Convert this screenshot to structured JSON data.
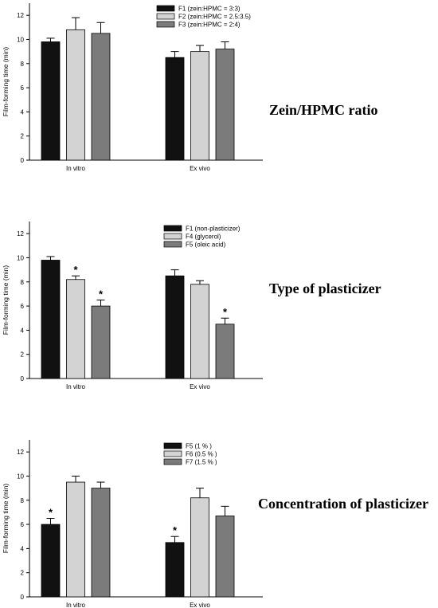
{
  "colors": {
    "series": [
      "#111111",
      "#d3d3d3",
      "#7b7b7b"
    ],
    "axis": "#000000",
    "error_bar": "#000000"
  },
  "chart_data": [
    {
      "type": "bar",
      "title": "Zein/HPMC ratio",
      "ylabel": "Film-forming time (min)",
      "xlabel": "",
      "ylim": [
        0,
        13
      ],
      "yticks": [
        0,
        2,
        4,
        6,
        8,
        10,
        12
      ],
      "categories": [
        "In vitro",
        "Ex vivo"
      ],
      "grid": false,
      "legend_position": "top-right",
      "series": [
        {
          "name": "F1 (zein:HPMC = 3:3)",
          "values": [
            9.8,
            8.5
          ],
          "errors": [
            0.3,
            0.5
          ],
          "significant": [
            false,
            false
          ]
        },
        {
          "name": "F2 (zein:HPMC = 2.5:3.5)",
          "values": [
            10.8,
            9.0
          ],
          "errors": [
            1.0,
            0.5
          ],
          "significant": [
            false,
            false
          ]
        },
        {
          "name": "F3 (zein:HPMC = 2:4)",
          "values": [
            10.5,
            9.2
          ],
          "errors": [
            0.9,
            0.6
          ],
          "significant": [
            false,
            false
          ]
        }
      ]
    },
    {
      "type": "bar",
      "title": "Type of plasticizer",
      "ylabel": "Film-forming time (min)",
      "xlabel": "",
      "ylim": [
        0,
        13
      ],
      "yticks": [
        0,
        2,
        4,
        6,
        8,
        10,
        12
      ],
      "categories": [
        "In vitro",
        "Ex vivo"
      ],
      "grid": false,
      "legend_position": "top-right",
      "series": [
        {
          "name": "F1 (non-plasticizer)",
          "values": [
            9.8,
            8.5
          ],
          "errors": [
            0.3,
            0.5
          ],
          "significant": [
            false,
            false
          ]
        },
        {
          "name": "F4 (glycerol)",
          "values": [
            8.2,
            7.8
          ],
          "errors": [
            0.3,
            0.3
          ],
          "significant": [
            true,
            false
          ]
        },
        {
          "name": "F5 (oleic acid)",
          "values": [
            6.0,
            4.5
          ],
          "errors": [
            0.5,
            0.5
          ],
          "significant": [
            true,
            true
          ]
        }
      ]
    },
    {
      "type": "bar",
      "title": "Concentration of plasticizer",
      "ylabel": "Film-forming time (min)",
      "xlabel": "",
      "ylim": [
        0,
        13
      ],
      "yticks": [
        0,
        2,
        4,
        6,
        8,
        10,
        12
      ],
      "categories": [
        "In vitro",
        "Ex vivo"
      ],
      "grid": false,
      "legend_position": "top-right",
      "series": [
        {
          "name": "F5 (1 % )",
          "values": [
            6.0,
            4.5
          ],
          "errors": [
            0.5,
            0.5
          ],
          "significant": [
            true,
            true
          ]
        },
        {
          "name": "F6 (0.5 % )",
          "values": [
            9.5,
            8.2
          ],
          "errors": [
            0.5,
            0.8
          ],
          "significant": [
            false,
            false
          ]
        },
        {
          "name": "F7 (1.5 % )",
          "values": [
            9.0,
            6.7
          ],
          "errors": [
            0.5,
            0.8
          ],
          "significant": [
            false,
            false
          ]
        }
      ]
    }
  ]
}
